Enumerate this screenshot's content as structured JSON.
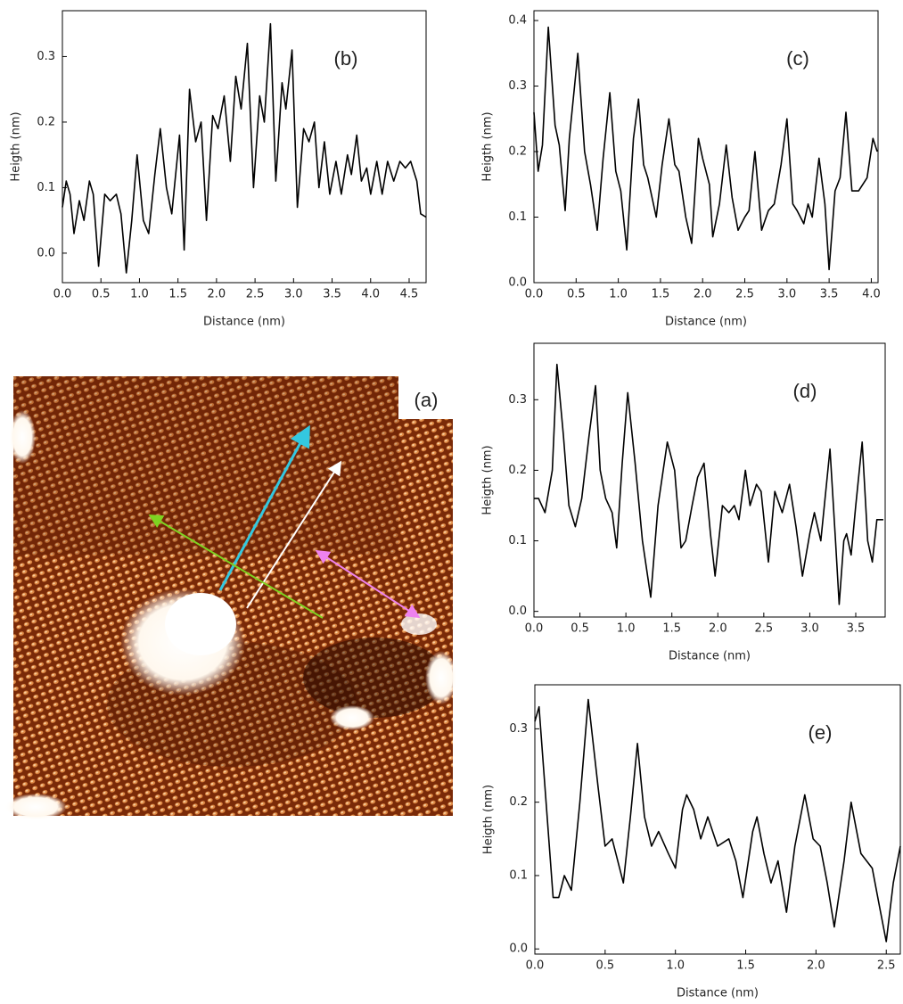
{
  "image": {
    "label": "(a)"
  },
  "chart_data": [
    {
      "type": "line",
      "title": "(b)",
      "xlabel": "Distance (nm)",
      "ylabel": "Heigth (nm)",
      "color": "#000000",
      "x": [
        0,
        0.05,
        0.1,
        0.15,
        0.22,
        0.28,
        0.35,
        0.4,
        0.47,
        0.55,
        0.62,
        0.7,
        0.76,
        0.83,
        0.9,
        0.97,
        1.05,
        1.12,
        1.2,
        1.27,
        1.35,
        1.42,
        1.52,
        1.58,
        1.65,
        1.73,
        1.8,
        1.87,
        1.95,
        2.02,
        2.1,
        2.18,
        2.25,
        2.32,
        2.4,
        2.48,
        2.56,
        2.62,
        2.7,
        2.77,
        2.85,
        2.9,
        2.98,
        3.05,
        3.13,
        3.2,
        3.27,
        3.33,
        3.4,
        3.47,
        3.55,
        3.62,
        3.7,
        3.75,
        3.82,
        3.88,
        3.95,
        4.0,
        4.08,
        4.15,
        4.22,
        4.3,
        4.38,
        4.45,
        4.52,
        4.6,
        4.65,
        4.72
      ],
      "values": [
        0.07,
        0.11,
        0.09,
        0.03,
        0.08,
        0.05,
        0.11,
        0.09,
        -0.02,
        0.09,
        0.08,
        0.09,
        0.06,
        -0.03,
        0.05,
        0.15,
        0.05,
        0.03,
        0.12,
        0.19,
        0.1,
        0.06,
        0.18,
        0.005,
        0.25,
        0.17,
        0.2,
        0.05,
        0.21,
        0.19,
        0.24,
        0.14,
        0.27,
        0.22,
        0.32,
        0.1,
        0.24,
        0.2,
        0.35,
        0.11,
        0.26,
        0.22,
        0.31,
        0.07,
        0.19,
        0.17,
        0.2,
        0.1,
        0.17,
        0.09,
        0.14,
        0.09,
        0.15,
        0.12,
        0.18,
        0.11,
        0.13,
        0.09,
        0.14,
        0.09,
        0.14,
        0.11,
        0.14,
        0.13,
        0.14,
        0.11,
        0.06,
        0.055
      ],
      "xlim": [
        0,
        4.72
      ],
      "ylim": [
        -0.045,
        0.37
      ],
      "xticks": [
        {
          "value": 0,
          "label": "0.0"
        },
        0.5,
        {
          "value": 1,
          "label": "1.0"
        },
        1.5,
        {
          "value": 2,
          "label": "2.0"
        },
        2.5,
        {
          "value": 3,
          "label": "3.0"
        },
        3.5,
        {
          "value": 4,
          "label": "4.0"
        },
        4.5
      ],
      "yticks": [
        {
          "value": 0,
          "label": "0.0"
        },
        0.1,
        0.2,
        0.3
      ]
    },
    {
      "type": "line",
      "title": "(c)",
      "xlabel": "Distance (nm)",
      "ylabel": "Heigth (nm)",
      "color": "#000000",
      "x": [
        0,
        0.05,
        0.1,
        0.17,
        0.25,
        0.3,
        0.37,
        0.42,
        0.52,
        0.6,
        0.67,
        0.75,
        0.82,
        0.9,
        0.97,
        1.03,
        1.1,
        1.18,
        1.24,
        1.3,
        1.35,
        1.45,
        1.52,
        1.6,
        1.67,
        1.72,
        1.8,
        1.87,
        1.95,
        2.0,
        2.08,
        2.12,
        2.2,
        2.28,
        2.35,
        2.42,
        2.5,
        2.55,
        2.62,
        2.7,
        2.78,
        2.85,
        2.93,
        3.0,
        3.07,
        3.12,
        3.2,
        3.25,
        3.3,
        3.38,
        3.45,
        3.5,
        3.57,
        3.63,
        3.7,
        3.77,
        3.85,
        3.95,
        4.02,
        4.07
      ],
      "values": [
        0.26,
        0.17,
        0.21,
        0.39,
        0.24,
        0.21,
        0.11,
        0.22,
        0.35,
        0.2,
        0.15,
        0.08,
        0.19,
        0.29,
        0.17,
        0.14,
        0.05,
        0.22,
        0.28,
        0.18,
        0.16,
        0.1,
        0.18,
        0.25,
        0.18,
        0.17,
        0.1,
        0.06,
        0.22,
        0.19,
        0.15,
        0.07,
        0.12,
        0.21,
        0.13,
        0.08,
        0.1,
        0.11,
        0.2,
        0.08,
        0.11,
        0.12,
        0.18,
        0.25,
        0.12,
        0.11,
        0.09,
        0.12,
        0.1,
        0.19,
        0.12,
        0.02,
        0.14,
        0.16,
        0.26,
        0.14,
        0.14,
        0.16,
        0.22,
        0.2
      ],
      "xlim": [
        0,
        4.08
      ],
      "ylim": [
        0,
        0.415
      ],
      "xticks": [
        {
          "value": 0,
          "label": "0.0"
        },
        0.5,
        {
          "value": 1,
          "label": "1.0"
        },
        1.5,
        {
          "value": 2,
          "label": "2.0"
        },
        2.5,
        {
          "value": 3,
          "label": "3.0"
        },
        3.5,
        {
          "value": 4,
          "label": "4.0"
        }
      ],
      "yticks": [
        {
          "value": 0,
          "label": "0.0"
        },
        0.1,
        0.2,
        0.3,
        0.4
      ]
    },
    {
      "type": "line",
      "title": "(d)",
      "xlabel": "Distance (nm)",
      "ylabel": "Heigth (nm)",
      "color": "#000000",
      "x": [
        0,
        0.05,
        0.12,
        0.2,
        0.25,
        0.32,
        0.38,
        0.45,
        0.52,
        0.6,
        0.67,
        0.72,
        0.78,
        0.85,
        0.9,
        0.96,
        1.02,
        1.1,
        1.18,
        1.27,
        1.35,
        1.45,
        1.53,
        1.6,
        1.65,
        1.72,
        1.78,
        1.85,
        1.92,
        1.97,
        2.05,
        2.12,
        2.18,
        2.23,
        2.3,
        2.35,
        2.42,
        2.47,
        2.55,
        2.62,
        2.7,
        2.78,
        2.85,
        2.92,
        3.0,
        3.05,
        3.12,
        3.22,
        3.28,
        3.32,
        3.37,
        3.4,
        3.45,
        3.5,
        3.57,
        3.63,
        3.68,
        3.73,
        3.8
      ],
      "values": [
        0.16,
        0.16,
        0.14,
        0.2,
        0.35,
        0.25,
        0.15,
        0.12,
        0.16,
        0.25,
        0.32,
        0.2,
        0.16,
        0.14,
        0.09,
        0.21,
        0.31,
        0.21,
        0.1,
        0.02,
        0.15,
        0.24,
        0.2,
        0.09,
        0.1,
        0.15,
        0.19,
        0.21,
        0.11,
        0.05,
        0.15,
        0.14,
        0.15,
        0.13,
        0.2,
        0.15,
        0.18,
        0.17,
        0.07,
        0.17,
        0.14,
        0.18,
        0.12,
        0.05,
        0.11,
        0.14,
        0.1,
        0.23,
        0.1,
        0.01,
        0.1,
        0.11,
        0.08,
        0.15,
        0.24,
        0.1,
        0.07,
        0.13,
        0.13
      ],
      "xlim": [
        0,
        3.82
      ],
      "ylim": [
        -0.008,
        0.38
      ],
      "xticks": [
        {
          "value": 0,
          "label": "0.0"
        },
        0.5,
        {
          "value": 1,
          "label": "1.0"
        },
        1.5,
        {
          "value": 2,
          "label": "2.0"
        },
        2.5,
        {
          "value": 3,
          "label": "3.0"
        },
        3.5
      ],
      "yticks": [
        {
          "value": 0,
          "label": "0.0"
        },
        0.1,
        0.2,
        0.3
      ]
    },
    {
      "type": "line",
      "title": "(e)",
      "xlabel": "Distance (nm)",
      "ylabel": "Heigth (nm)",
      "color": "#000000",
      "x": [
        0,
        0.03,
        0.08,
        0.13,
        0.17,
        0.21,
        0.26,
        0.32,
        0.38,
        0.45,
        0.5,
        0.55,
        0.63,
        0.68,
        0.73,
        0.78,
        0.83,
        0.88,
        0.95,
        1.0,
        1.05,
        1.08,
        1.13,
        1.18,
        1.23,
        1.3,
        1.38,
        1.43,
        1.48,
        1.55,
        1.58,
        1.63,
        1.68,
        1.73,
        1.79,
        1.85,
        1.92,
        1.98,
        2.03,
        2.08,
        2.13,
        2.2,
        2.25,
        2.32,
        2.4,
        2.45,
        2.5,
        2.55,
        2.6
      ],
      "values": [
        0.31,
        0.33,
        0.2,
        0.07,
        0.07,
        0.1,
        0.08,
        0.2,
        0.34,
        0.22,
        0.14,
        0.15,
        0.09,
        0.18,
        0.28,
        0.18,
        0.14,
        0.16,
        0.13,
        0.11,
        0.19,
        0.21,
        0.19,
        0.15,
        0.18,
        0.14,
        0.15,
        0.12,
        0.07,
        0.16,
        0.18,
        0.13,
        0.09,
        0.12,
        0.05,
        0.14,
        0.21,
        0.15,
        0.14,
        0.09,
        0.03,
        0.12,
        0.2,
        0.13,
        0.11,
        0.06,
        0.01,
        0.09,
        0.14
      ],
      "xlim": [
        0,
        2.6
      ],
      "ylim": [
        -0.007,
        0.36
      ],
      "xticks": [
        {
          "value": 0,
          "label": "0.0"
        },
        0.5,
        {
          "value": 1,
          "label": "1.0"
        },
        1.5,
        {
          "value": 2,
          "label": "2.0"
        },
        2.5
      ],
      "yticks": [
        {
          "value": 0,
          "label": "0.0"
        },
        0.1,
        0.2,
        0.3
      ]
    }
  ]
}
